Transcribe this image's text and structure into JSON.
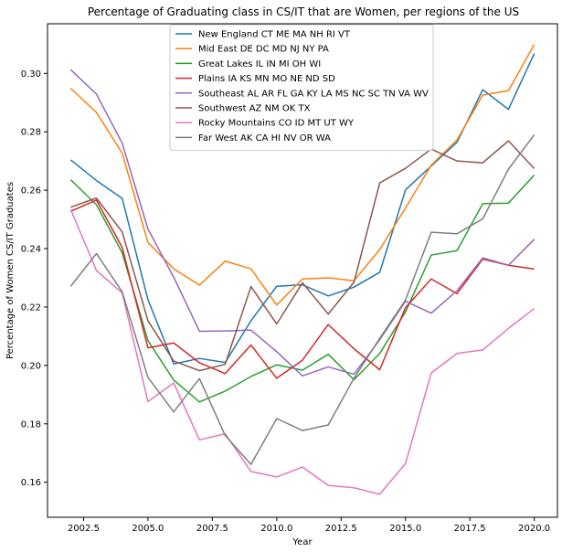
{
  "chart_data": {
    "type": "line",
    "title": "Percentage of Graduating class in CS/IT that are Women, per regions of the US",
    "xlabel": "Year",
    "ylabel": "Percentage of Women CS/IT Graduates",
    "xlim": [
      2001.1,
      2020.9
    ],
    "ylim": [
      0.148,
      0.317
    ],
    "x_ticks": [
      2002.5,
      2005.0,
      2007.5,
      2010.0,
      2012.5,
      2015.0,
      2017.5,
      2020.0
    ],
    "x_tick_labels": [
      "2002.5",
      "2005.0",
      "2007.5",
      "2010.0",
      "2012.5",
      "2015.0",
      "2017.5",
      "2020.0"
    ],
    "y_ticks": [
      0.16,
      0.18,
      0.2,
      0.22,
      0.24,
      0.26,
      0.28,
      0.3
    ],
    "y_tick_labels": [
      "0.16",
      "0.18",
      "0.20",
      "0.22",
      "0.24",
      "0.26",
      "0.28",
      "0.30"
    ],
    "grid": false,
    "legend_position": "top-center",
    "x": [
      2002,
      2003,
      2004,
      2005,
      2006,
      2007,
      2008,
      2009,
      2010,
      2011,
      2012,
      2013,
      2014,
      2015,
      2016,
      2017,
      2018,
      2019,
      2020
    ],
    "series": [
      {
        "name": "New England CT ME MA NH RI VT",
        "color": "#1f77b4",
        "values": [
          0.2704,
          0.2633,
          0.2572,
          0.2225,
          0.2005,
          0.2024,
          0.201,
          0.2153,
          0.2271,
          0.2276,
          0.2238,
          0.2268,
          0.2319,
          0.2601,
          0.2683,
          0.2764,
          0.2944,
          0.2877,
          0.3068
        ]
      },
      {
        "name": "Mid East DE DC MD NJ NY PA",
        "color": "#ff7f0e",
        "values": [
          0.2949,
          0.2866,
          0.2727,
          0.2421,
          0.2331,
          0.2275,
          0.2357,
          0.2331,
          0.2207,
          0.2296,
          0.23,
          0.229,
          0.2397,
          0.2539,
          0.2686,
          0.2772,
          0.2926,
          0.2941,
          0.3099
        ]
      },
      {
        "name": "Great Lakes IL IN MI OH WI",
        "color": "#2ca02c",
        "values": [
          0.2636,
          0.255,
          0.2386,
          0.2085,
          0.195,
          0.1875,
          0.1912,
          0.1962,
          0.2002,
          0.1984,
          0.2038,
          0.1951,
          0.2041,
          0.2183,
          0.2378,
          0.2393,
          0.2554,
          0.2556,
          0.2652
        ]
      },
      {
        "name": "Plains IA KS MN MO NE ND SD",
        "color": "#d62728",
        "values": [
          0.2528,
          0.2566,
          0.2404,
          0.206,
          0.2077,
          0.2009,
          0.1972,
          0.207,
          0.1956,
          0.2018,
          0.214,
          0.2057,
          0.1985,
          0.2198,
          0.2296,
          0.2246,
          0.2364,
          0.2343,
          0.233
        ]
      },
      {
        "name": "Southeast AL AR FL GA KY LA MS NC SC TN VA WV",
        "color": "#9467bd",
        "values": [
          0.3013,
          0.2929,
          0.2761,
          0.2467,
          0.2302,
          0.2117,
          0.2118,
          0.2121,
          0.2047,
          0.1964,
          0.1995,
          0.197,
          0.2088,
          0.222,
          0.2179,
          0.2256,
          0.2368,
          0.2343,
          0.2432
        ]
      },
      {
        "name": "Southwest AZ NM OK TX",
        "color": "#8c564b",
        "values": [
          0.2542,
          0.2573,
          0.2457,
          0.2153,
          0.2015,
          0.1982,
          0.2004,
          0.227,
          0.2142,
          0.2283,
          0.2176,
          0.2285,
          0.2625,
          0.2675,
          0.2741,
          0.27,
          0.2694,
          0.2769,
          0.2674
        ]
      },
      {
        "name": "Rocky Mountains CO ID MT UT WY",
        "color": "#e377c2",
        "values": [
          0.2534,
          0.2325,
          0.2248,
          0.1876,
          0.194,
          0.1745,
          0.1766,
          0.1637,
          0.1618,
          0.1652,
          0.1589,
          0.1581,
          0.1559,
          0.1664,
          0.1974,
          0.2041,
          0.2053,
          0.2127,
          0.2195
        ]
      },
      {
        "name": "Far West AK CA HI NV OR WA",
        "color": "#7f7f7f",
        "values": [
          0.2271,
          0.2383,
          0.2252,
          0.1959,
          0.1841,
          0.1955,
          0.176,
          0.1661,
          0.1818,
          0.1777,
          0.1796,
          0.1956,
          0.2093,
          0.2224,
          0.2456,
          0.2451,
          0.2502,
          0.2672,
          0.279
        ]
      }
    ]
  }
}
